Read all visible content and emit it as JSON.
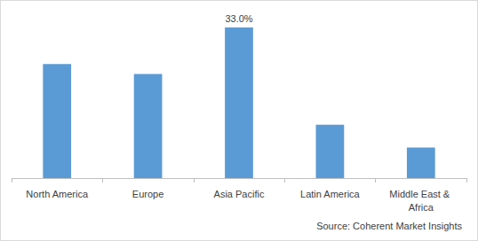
{
  "chart_data": {
    "type": "bar",
    "categories": [
      "North America",
      "Europe",
      "Asia Pacific",
      "Latin America",
      "Middle East & Africa"
    ],
    "values": [
      25,
      22.8,
      33,
      11.7,
      6.7
    ],
    "value_labels": [
      null,
      null,
      "33.0%",
      null,
      null
    ],
    "color": "#5b9bd5",
    "ylim": [
      0,
      33
    ],
    "grid": false,
    "data_labels": true,
    "tick_labels": "x",
    "source": "Source: Coherent Market Insights"
  }
}
